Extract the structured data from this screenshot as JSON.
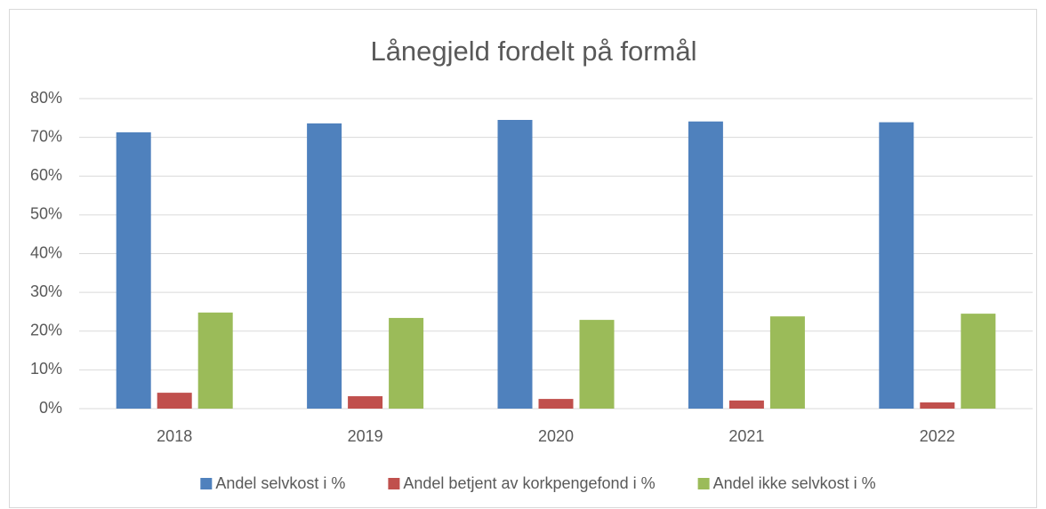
{
  "chart_data": {
    "type": "bar",
    "title": "Lånegjeld fordelt på formål",
    "categories": [
      "2018",
      "2019",
      "2020",
      "2021",
      "2022"
    ],
    "series": [
      {
        "name": "Andel selvkost i %",
        "color": "#4f81bd",
        "values": [
          71.3,
          73.6,
          74.5,
          74.1,
          73.9
        ]
      },
      {
        "name": "Andel betjent av korkpengefond i %",
        "color": "#c0504d",
        "values": [
          4.1,
          3.2,
          2.5,
          2.1,
          1.6
        ]
      },
      {
        "name": "Andel ikke selvkost i %",
        "color": "#9bbb59",
        "values": [
          24.8,
          23.4,
          22.9,
          23.8,
          24.5
        ]
      }
    ],
    "ylim": [
      0,
      80
    ],
    "yticks": [
      {
        "value": 0,
        "label": "0%"
      },
      {
        "value": 10,
        "label": "10%"
      },
      {
        "value": 20,
        "label": "20%"
      },
      {
        "value": 30,
        "label": "30%"
      },
      {
        "value": 40,
        "label": "40%"
      },
      {
        "value": 50,
        "label": "50%"
      },
      {
        "value": 60,
        "label": "60%"
      },
      {
        "value": 70,
        "label": "70%"
      },
      {
        "value": 80,
        "label": "80%"
      }
    ],
    "grid": true,
    "legend": "bottom"
  }
}
